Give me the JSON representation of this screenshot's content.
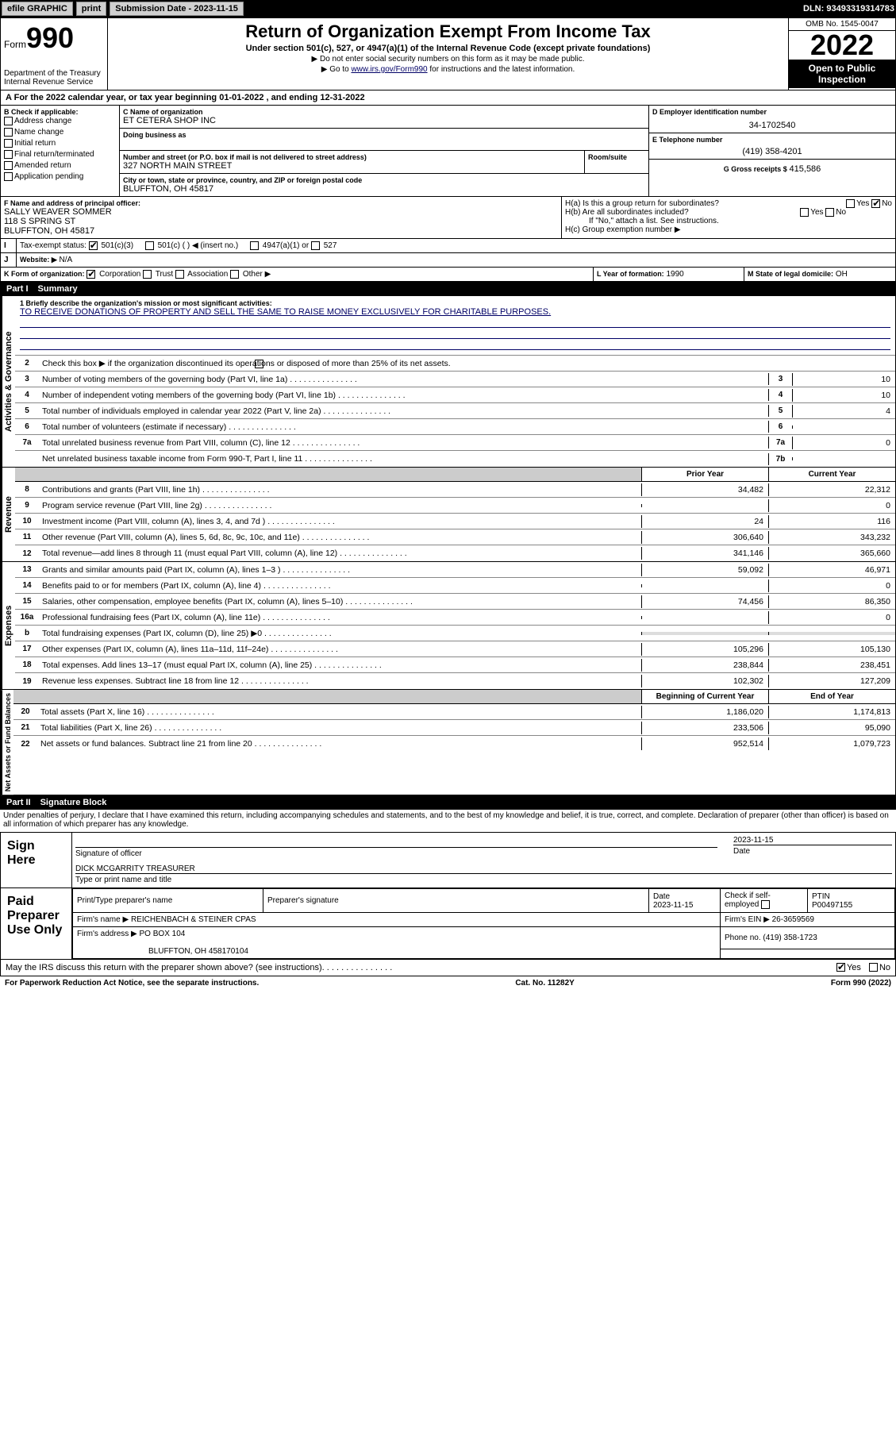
{
  "topbar": {
    "efile": "efile GRAPHIC",
    "print": "print",
    "sub_label": "Submission Date - 2023-11-15",
    "dln": "DLN: 93493319314783"
  },
  "header": {
    "form_prefix": "Form",
    "form_num": "990",
    "title": "Return of Organization Exempt From Income Tax",
    "subtitle": "Under section 501(c), 527, or 4947(a)(1) of the Internal Revenue Code (except private foundations)",
    "note1": "▶ Do not enter social security numbers on this form as it may be made public.",
    "note2": "▶ Go to ",
    "note2_link": "www.irs.gov/Form990",
    "note2_after": " for instructions and the latest information.",
    "dept": "Department of the Treasury",
    "irs": "Internal Revenue Service",
    "omb": "OMB No. 1545-0047",
    "year": "2022",
    "open": "Open to Public Inspection"
  },
  "taxyear": "For the 2022 calendar year, or tax year beginning 01-01-2022   , and ending 12-31-2022",
  "sectionB": {
    "title": "B Check if applicable:",
    "items": [
      "Address change",
      "Name change",
      "Initial return",
      "Final return/terminated",
      "Amended return",
      "Application pending"
    ]
  },
  "org": {
    "c_label": "C Name of organization",
    "name": "ET CETERA SHOP INC",
    "dba_label": "Doing business as",
    "dba": "",
    "addr_label": "Number and street (or P.O. box if mail is not delivered to street address)",
    "room_label": "Room/suite",
    "street": "327 NORTH MAIN STREET",
    "city_label": "City or town, state or province, country, and ZIP or foreign postal code",
    "city": "BLUFFTON, OH  45817"
  },
  "ein": {
    "label": "D Employer identification number",
    "value": "34-1702540"
  },
  "phone": {
    "label": "E Telephone number",
    "value": "(419) 358-4201"
  },
  "gross": {
    "label": "G Gross receipts $",
    "value": "415,586"
  },
  "officer": {
    "label": "F  Name and address of principal officer:",
    "name": "SALLY WEAVER SOMMER",
    "street": "118 S SPRING ST",
    "city": "BLUFFTON, OH  45817"
  },
  "h": {
    "a": "H(a)  Is this a group return for subordinates?",
    "a_yes": "Yes",
    "a_no": "No",
    "b": "H(b)  Are all subordinates included?",
    "b_yes": "Yes",
    "b_no": "No",
    "note": "If \"No,\" attach a list. See instructions.",
    "c": "H(c)  Group exemption number ▶"
  },
  "tax_status": {
    "label": "Tax-exempt status:",
    "opt1": "501(c)(3)",
    "opt2": "501(c) (   ) ◀ (insert no.)",
    "opt3": "4947(a)(1) or",
    "opt4": "527"
  },
  "website": {
    "label": "Website: ▶",
    "value": "N/A"
  },
  "k": {
    "label": "K Form of organization:",
    "opts": [
      "Corporation",
      "Trust",
      "Association",
      "Other ▶"
    ]
  },
  "l": {
    "label": "L Year of formation:",
    "value": "1990"
  },
  "m": {
    "label": "M State of legal domicile:",
    "value": "OH"
  },
  "part1": {
    "title": "Part I",
    "subtitle": "Summary",
    "l1_label": "1  Briefly describe the organization's mission or most significant activities:",
    "l1_text": "TO RECEIVE DONATIONS OF PROPERTY AND SELL THE SAME TO RAISE MONEY EXCLUSIVELY FOR CHARITABLE PURPOSES.",
    "l2": "Check this box ▶    if the organization discontinued its operations or disposed of more than 25% of its net assets.",
    "rows_gov": [
      {
        "n": "3",
        "t": "Number of voting members of the governing body (Part VI, line 1a)",
        "b": "3",
        "v": "10"
      },
      {
        "n": "4",
        "t": "Number of independent voting members of the governing body (Part VI, line 1b)",
        "b": "4",
        "v": "10"
      },
      {
        "n": "5",
        "t": "Total number of individuals employed in calendar year 2022 (Part V, line 2a)",
        "b": "5",
        "v": "4"
      },
      {
        "n": "6",
        "t": "Total number of volunteers (estimate if necessary)",
        "b": "6",
        "v": ""
      },
      {
        "n": "7a",
        "t": "Total unrelated business revenue from Part VIII, column (C), line 12",
        "b": "7a",
        "v": "0"
      },
      {
        "n": "",
        "t": "Net unrelated business taxable income from Form 990-T, Part I, line 11",
        "b": "7b",
        "v": ""
      }
    ],
    "col_prior": "Prior Year",
    "col_current": "Current Year",
    "rows_rev": [
      {
        "n": "8",
        "t": "Contributions and grants (Part VIII, line 1h)",
        "p": "34,482",
        "c": "22,312"
      },
      {
        "n": "9",
        "t": "Program service revenue (Part VIII, line 2g)",
        "p": "",
        "c": "0"
      },
      {
        "n": "10",
        "t": "Investment income (Part VIII, column (A), lines 3, 4, and 7d )",
        "p": "24",
        "c": "116"
      },
      {
        "n": "11",
        "t": "Other revenue (Part VIII, column (A), lines 5, 6d, 8c, 9c, 10c, and 11e)",
        "p": "306,640",
        "c": "343,232"
      },
      {
        "n": "12",
        "t": "Total revenue—add lines 8 through 11 (must equal Part VIII, column (A), line 12)",
        "p": "341,146",
        "c": "365,660"
      }
    ],
    "rows_exp": [
      {
        "n": "13",
        "t": "Grants and similar amounts paid (Part IX, column (A), lines 1–3 )",
        "p": "59,092",
        "c": "46,971"
      },
      {
        "n": "14",
        "t": "Benefits paid to or for members (Part IX, column (A), line 4)",
        "p": "",
        "c": "0"
      },
      {
        "n": "15",
        "t": "Salaries, other compensation, employee benefits (Part IX, column (A), lines 5–10)",
        "p": "74,456",
        "c": "86,350"
      },
      {
        "n": "16a",
        "t": "Professional fundraising fees (Part IX, column (A), line 11e)",
        "p": "",
        "c": "0"
      },
      {
        "n": "b",
        "t": "Total fundraising expenses (Part IX, column (D), line 25) ▶0",
        "p": "shade",
        "c": "shade"
      },
      {
        "n": "17",
        "t": "Other expenses (Part IX, column (A), lines 11a–11d, 11f–24e)",
        "p": "105,296",
        "c": "105,130"
      },
      {
        "n": "18",
        "t": "Total expenses. Add lines 13–17 (must equal Part IX, column (A), line 25)",
        "p": "238,844",
        "c": "238,451"
      },
      {
        "n": "19",
        "t": "Revenue less expenses. Subtract line 18 from line 12",
        "p": "102,302",
        "c": "127,209"
      }
    ],
    "col_begin": "Beginning of Current Year",
    "col_end": "End of Year",
    "rows_net": [
      {
        "n": "20",
        "t": "Total assets (Part X, line 16)",
        "p": "1,186,020",
        "c": "1,174,813"
      },
      {
        "n": "21",
        "t": "Total liabilities (Part X, line 26)",
        "p": "233,506",
        "c": "95,090"
      },
      {
        "n": "22",
        "t": "Net assets or fund balances. Subtract line 21 from line 20",
        "p": "952,514",
        "c": "1,079,723"
      }
    ],
    "side_gov": "Activities & Governance",
    "side_rev": "Revenue",
    "side_exp": "Expenses",
    "side_net": "Net Assets or Fund Balances"
  },
  "part2": {
    "title": "Part II",
    "subtitle": "Signature Block",
    "penalty": "Under penalties of perjury, I declare that I have examined this return, including accompanying schedules and statements, and to the best of my knowledge and belief, it is true, correct, and complete. Declaration of preparer (other than officer) is based on all information of which preparer has any knowledge.",
    "sign_here": "Sign Here",
    "sig_officer": "Signature of officer",
    "sig_date": "2023-11-15",
    "date_label": "Date",
    "officer_name": "DICK MCGARRITY TREASURER",
    "name_label": "Type or print name and title",
    "paid_prep": "Paid Preparer Use Only",
    "prep_name_label": "Print/Type preparer's name",
    "prep_sig_label": "Preparer's signature",
    "prep_date_label": "Date",
    "prep_date": "2023-11-15",
    "check_self": "Check    if self-employed",
    "ptin_label": "PTIN",
    "ptin": "P00497155",
    "firm_name_label": "Firm's name   ▶",
    "firm_name": "REICHENBACH & STEINER CPAS",
    "firm_ein_label": "Firm's EIN ▶",
    "firm_ein": "26-3659569",
    "firm_addr_label": "Firm's address ▶",
    "firm_addr1": "PO BOX 104",
    "firm_addr2": "BLUFFTON, OH  458170104",
    "phone_label": "Phone no.",
    "phone": "(419) 358-1723",
    "discuss": "May the IRS discuss this return with the preparer shown above? (see instructions)",
    "yes": "Yes",
    "no": "No"
  },
  "footer": {
    "left": "For Paperwork Reduction Act Notice, see the separate instructions.",
    "mid": "Cat. No. 11282Y",
    "right": "Form 990 (2022)"
  }
}
